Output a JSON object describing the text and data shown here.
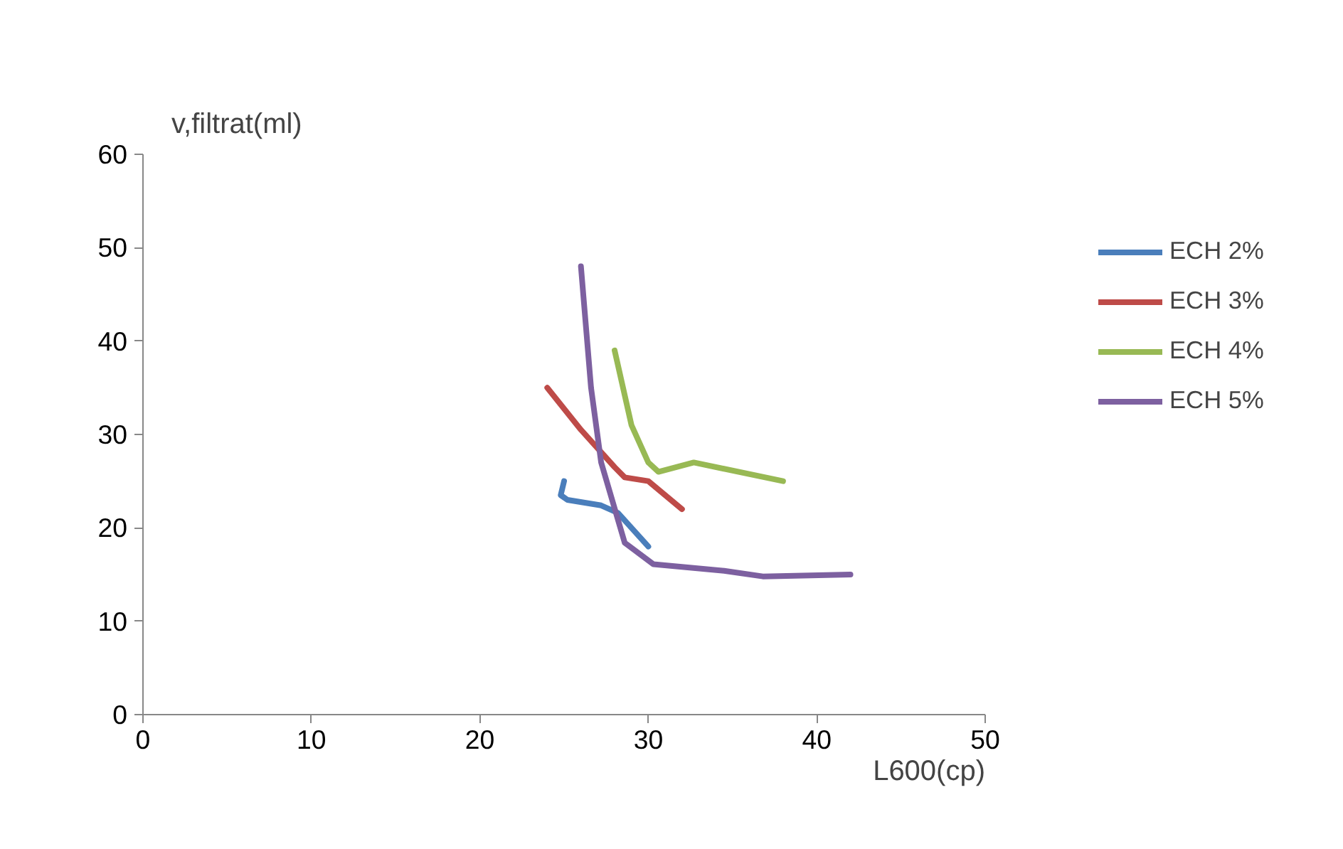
{
  "chart_data": {
    "type": "line",
    "xlabel": "L600(cp)",
    "ylabel": "v,filtrat(ml)",
    "xlim": [
      0,
      50
    ],
    "ylim": [
      0,
      60
    ],
    "xticks": [
      0,
      10,
      20,
      30,
      40,
      50
    ],
    "yticks": [
      0,
      10,
      20,
      30,
      40,
      50,
      60
    ],
    "grid": false,
    "legend": "right",
    "marker": "none",
    "line_style": "solid",
    "series": [
      {
        "name": "ECH 2%",
        "color": "#4a7ebb",
        "x": [
          25,
          24.8,
          25.2,
          27.2,
          28.2,
          30
        ],
        "values": [
          25,
          23.5,
          23,
          22.4,
          21.6,
          18
        ]
      },
      {
        "name": "ECH 3%",
        "color": "#be4b48",
        "x": [
          24,
          26,
          28,
          28.6,
          30,
          32
        ],
        "values": [
          35,
          30.5,
          26.5,
          25.4,
          25,
          22
        ]
      },
      {
        "name": "ECH 4%",
        "color": "#98b954",
        "x": [
          28,
          29,
          30,
          30.6,
          32.7,
          38
        ],
        "values": [
          39,
          31,
          27,
          26,
          27,
          25
        ]
      },
      {
        "name": "ECH 5%",
        "color": "#7d60a0",
        "x": [
          26,
          26.6,
          27.2,
          28.6,
          30.3,
          34.5,
          36.8,
          42
        ],
        "values": [
          48,
          35,
          27,
          18.4,
          16.1,
          15.4,
          14.8,
          15
        ]
      }
    ]
  }
}
